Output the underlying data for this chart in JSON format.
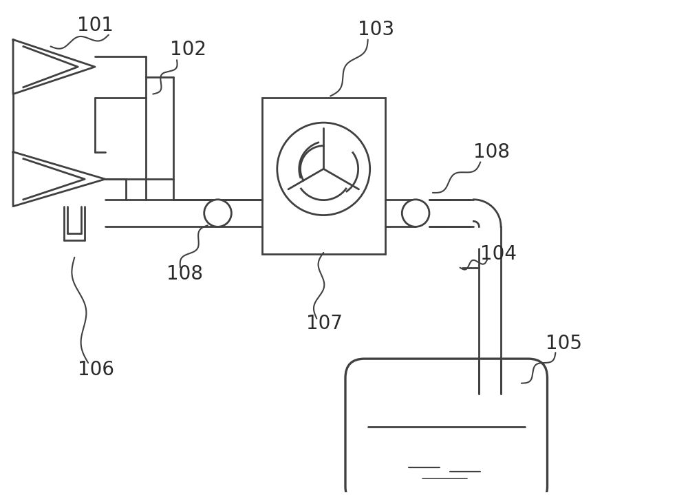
{
  "bg_color": "#ffffff",
  "line_color": "#404040",
  "label_color": "#2a2a2a",
  "fig_width": 10.0,
  "fig_height": 7.19,
  "label_fontsize": 20,
  "lw": 2.0
}
